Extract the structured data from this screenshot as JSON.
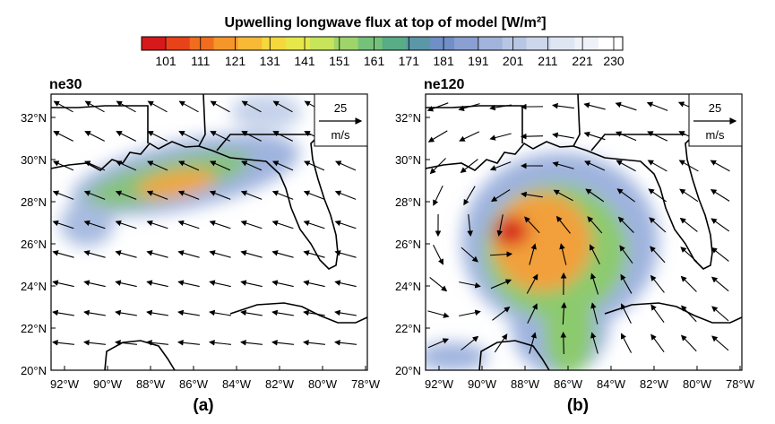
{
  "title": "Upwelling longwave flux at top of model [W/m²]",
  "colorbar": {
    "ticks": [
      101,
      111,
      121,
      131,
      141,
      151,
      161,
      171,
      181,
      191,
      201,
      211,
      221,
      230
    ]
  },
  "panels": [
    {
      "name": "ne30",
      "caption": "(a)",
      "vector_ref": {
        "value": "25",
        "unit": "m/s"
      }
    },
    {
      "name": "ne120",
      "caption": "(b)",
      "vector_ref": {
        "value": "25",
        "unit": "m/s"
      }
    }
  ],
  "x_ticks": [
    "92°W",
    "90°W",
    "88°W",
    "86°W",
    "84°W",
    "82°W",
    "80°W",
    "78°W"
  ],
  "y_ticks": [
    "32°N",
    "30°N",
    "28°N",
    "26°N",
    "24°N",
    "22°N",
    "20°N"
  ]
}
